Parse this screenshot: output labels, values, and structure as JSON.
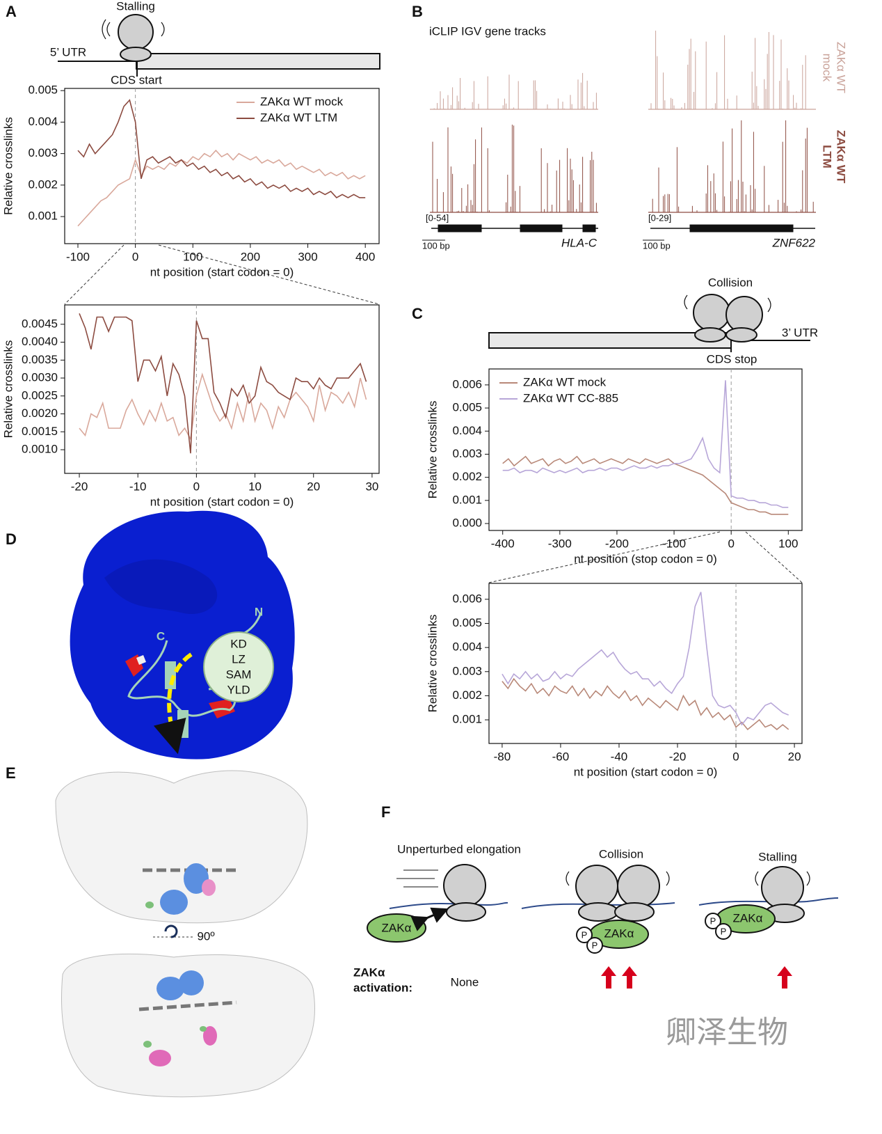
{
  "chart_data": [
    {
      "type": "line",
      "xlabel": "nt position (start codon = 0)",
      "ylabel": "Relative crosslinks",
      "legend": "upper right",
      "vline": 0,
      "x": [
        -100,
        -90,
        -80,
        -70,
        -60,
        -50,
        -40,
        -30,
        -20,
        -10,
        0,
        10,
        20,
        30,
        40,
        50,
        60,
        70,
        80,
        90,
        100,
        110,
        120,
        130,
        140,
        150,
        160,
        170,
        180,
        190,
        200,
        210,
        220,
        230,
        240,
        250,
        260,
        270,
        280,
        290,
        300,
        310,
        320,
        330,
        340,
        350,
        360,
        370,
        380,
        390,
        400
      ],
      "series": [
        {
          "name": "ZAKα WT mock",
          "color": "#d9a89b",
          "values": [
            0.0007,
            0.0009,
            0.0011,
            0.0013,
            0.0015,
            0.0016,
            0.0018,
            0.002,
            0.0021,
            0.0022,
            0.0028,
            0.0023,
            0.0026,
            0.0025,
            0.0026,
            0.0025,
            0.0027,
            0.0026,
            0.0028,
            0.0027,
            0.0029,
            0.0028,
            0.003,
            0.0029,
            0.0031,
            0.0029,
            0.003,
            0.0028,
            0.003,
            0.0029,
            0.0028,
            0.0029,
            0.0027,
            0.0028,
            0.0027,
            0.0028,
            0.0026,
            0.0027,
            0.0025,
            0.0026,
            0.0025,
            0.0024,
            0.0025,
            0.0023,
            0.0024,
            0.0023,
            0.0024,
            0.0022,
            0.0023,
            0.0022,
            0.0023
          ]
        },
        {
          "name": "ZAKα WT LTM",
          "color": "#8c4b40",
          "values": [
            0.0031,
            0.0029,
            0.0033,
            0.003,
            0.0032,
            0.0034,
            0.0036,
            0.004,
            0.0045,
            0.0047,
            0.004,
            0.0022,
            0.0028,
            0.0029,
            0.0027,
            0.0028,
            0.0029,
            0.0027,
            0.0028,
            0.0026,
            0.0027,
            0.0025,
            0.0026,
            0.0024,
            0.0025,
            0.0023,
            0.0024,
            0.0022,
            0.0023,
            0.0021,
            0.0022,
            0.002,
            0.0021,
            0.0019,
            0.002,
            0.0019,
            0.002,
            0.0018,
            0.0019,
            0.0018,
            0.0019,
            0.0017,
            0.0018,
            0.0017,
            0.0018,
            0.0016,
            0.0017,
            0.0016,
            0.0017,
            0.0016,
            0.0016
          ]
        }
      ],
      "xlim": [
        -123,
        424
      ],
      "ylim": [
        0.00014,
        0.00507
      ],
      "xticks": [
        -100,
        0,
        100,
        200,
        300,
        400
      ],
      "yticks": [
        0.001,
        0.002,
        0.003,
        0.004,
        0.005
      ]
    },
    {
      "type": "line",
      "xlabel": "nt position (start codon = 0)",
      "ylabel": "Relative crosslinks",
      "vline": 0,
      "x": [
        -20,
        -19,
        -18,
        -17,
        -16,
        -15,
        -14,
        -13,
        -12,
        -11,
        -10,
        -9,
        -8,
        -7,
        -6,
        -5,
        -4,
        -3,
        -2,
        -1,
        0,
        1,
        2,
        3,
        4,
        5,
        6,
        7,
        8,
        9,
        10,
        11,
        12,
        13,
        14,
        15,
        16,
        17,
        18,
        19,
        20,
        21,
        22,
        23,
        24,
        25,
        26,
        27,
        28,
        29
      ],
      "series": [
        {
          "color": "#d9a89b",
          "values": [
            0.0016,
            0.0014,
            0.002,
            0.0019,
            0.0023,
            0.0016,
            0.0016,
            0.0016,
            0.0021,
            0.0024,
            0.002,
            0.0017,
            0.0021,
            0.0018,
            0.0023,
            0.0018,
            0.0019,
            0.0014,
            0.0016,
            0.0013,
            0.0025,
            0.0031,
            0.0026,
            0.0021,
            0.0018,
            0.002,
            0.0016,
            0.0023,
            0.0018,
            0.0026,
            0.0018,
            0.0023,
            0.0021,
            0.0016,
            0.0022,
            0.0019,
            0.0024,
            0.0026,
            0.0024,
            0.0022,
            0.0018,
            0.0028,
            0.0021,
            0.0026,
            0.0025,
            0.0023,
            0.0026,
            0.0022,
            0.003,
            0.0024
          ]
        },
        {
          "color": "#8c4b40",
          "values": [
            0.0048,
            0.0044,
            0.0038,
            0.0047,
            0.0047,
            0.0043,
            0.0047,
            0.0047,
            0.0047,
            0.0046,
            0.0029,
            0.0035,
            0.0035,
            0.0032,
            0.0036,
            0.0025,
            0.0034,
            0.0031,
            0.0025,
            0.0009,
            0.0046,
            0.0041,
            0.0041,
            0.0026,
            0.0023,
            0.0019,
            0.0027,
            0.0025,
            0.0028,
            0.0023,
            0.0025,
            0.0033,
            0.0029,
            0.0028,
            0.0026,
            0.0025,
            0.0024,
            0.003,
            0.0029,
            0.0029,
            0.0027,
            0.003,
            0.0028,
            0.0027,
            0.003,
            0.003,
            0.003,
            0.0032,
            0.0034,
            0.0029
          ]
        }
      ],
      "xlim": [
        -22.5,
        31.2
      ],
      "ylim": [
        0.00034,
        0.00504
      ],
      "xticks": [
        -20,
        -10,
        0,
        10,
        20,
        30
      ],
      "yticks": [
        {
          "value": 0.001,
          "label": "0.0010"
        },
        0.0015,
        {
          "value": 0.002,
          "label": "0.0020"
        },
        0.0025,
        {
          "value": 0.003,
          "label": "0.0030"
        },
        0.0035,
        {
          "value": 0.004,
          "label": "0.0040"
        },
        0.0045
      ]
    },
    {
      "type": "line",
      "xlabel": "nt position (stop codon = 0)",
      "ylabel": "Relative crosslinks",
      "legend": "upper left",
      "vline": 0,
      "x": [
        -400,
        -390,
        -380,
        -370,
        -360,
        -350,
        -340,
        -330,
        -320,
        -310,
        -300,
        -290,
        -280,
        -270,
        -260,
        -250,
        -240,
        -230,
        -220,
        -210,
        -200,
        -190,
        -180,
        -170,
        -160,
        -150,
        -140,
        -130,
        -120,
        -110,
        -100,
        -90,
        -80,
        -70,
        -60,
        -50,
        -40,
        -30,
        -20,
        -10,
        0,
        10,
        20,
        30,
        40,
        50,
        60,
        70,
        80,
        90,
        100
      ],
      "series": [
        {
          "name": "ZAKα WT mock",
          "color": "#b88878",
          "values": [
            0.0026,
            0.0028,
            0.0025,
            0.0027,
            0.0029,
            0.0026,
            0.0027,
            0.0028,
            0.0025,
            0.0027,
            0.0028,
            0.0026,
            0.0027,
            0.0029,
            0.0026,
            0.0027,
            0.0028,
            0.0026,
            0.0027,
            0.0028,
            0.0027,
            0.0026,
            0.0028,
            0.0027,
            0.0026,
            0.0028,
            0.0027,
            0.0026,
            0.0027,
            0.0028,
            0.0026,
            0.0025,
            0.0024,
            0.0023,
            0.0022,
            0.0021,
            0.0019,
            0.0017,
            0.0015,
            0.0013,
            0.0009,
            0.0008,
            0.0007,
            0.0006,
            0.0006,
            0.0005,
            0.0005,
            0.0004,
            0.0004,
            0.0004,
            0.0004
          ]
        },
        {
          "name": "ZAKα WT CC-885",
          "color": "#b7a6d8",
          "values": [
            0.0023,
            0.0023,
            0.0024,
            0.0022,
            0.0023,
            0.0023,
            0.0022,
            0.0024,
            0.0023,
            0.0022,
            0.0023,
            0.0022,
            0.0023,
            0.0024,
            0.0022,
            0.0023,
            0.0023,
            0.0024,
            0.0023,
            0.0024,
            0.0024,
            0.0023,
            0.0024,
            0.0025,
            0.0024,
            0.0024,
            0.0025,
            0.0024,
            0.0025,
            0.0025,
            0.0026,
            0.0026,
            0.0027,
            0.0028,
            0.0032,
            0.0037,
            0.0028,
            0.0024,
            0.0022,
            0.0062,
            0.0012,
            0.0011,
            0.0011,
            0.001,
            0.001,
            0.0009,
            0.0009,
            0.0008,
            0.0008,
            0.0007,
            0.0007
          ]
        }
      ],
      "xlim": [
        -424,
        124
      ],
      "ylim": [
        -0.0003,
        0.00669
      ],
      "xticks": [
        -400,
        -300,
        -200,
        -100,
        0,
        100
      ],
      "yticks": [
        {
          "value": 0,
          "label": "0.000"
        },
        0.001,
        0.002,
        0.003,
        0.004,
        0.005,
        0.006
      ]
    },
    {
      "type": "line",
      "xlabel": "nt position (start codon = 0)",
      "ylabel": "Relative crosslinks",
      "vline": 0,
      "x": [
        -80,
        -78,
        -76,
        -74,
        -72,
        -70,
        -68,
        -66,
        -64,
        -62,
        -60,
        -58,
        -56,
        -54,
        -52,
        -50,
        -48,
        -46,
        -44,
        -42,
        -40,
        -38,
        -36,
        -34,
        -32,
        -30,
        -28,
        -26,
        -24,
        -22,
        -20,
        -18,
        -16,
        -14,
        -12,
        -10,
        -8,
        -6,
        -4,
        -2,
        0,
        2,
        4,
        6,
        8,
        10,
        12,
        14,
        16,
        18
      ],
      "series": [
        {
          "color": "#b88878",
          "values": [
            0.0026,
            0.0023,
            0.0027,
            0.0024,
            0.0022,
            0.0025,
            0.0021,
            0.0023,
            0.002,
            0.0024,
            0.0022,
            0.0021,
            0.0024,
            0.002,
            0.0023,
            0.0019,
            0.0022,
            0.002,
            0.0024,
            0.0021,
            0.0019,
            0.0022,
            0.0018,
            0.002,
            0.0016,
            0.0019,
            0.0017,
            0.0015,
            0.0018,
            0.0016,
            0.0014,
            0.002,
            0.0016,
            0.0018,
            0.0012,
            0.0015,
            0.0011,
            0.0013,
            0.001,
            0.0012,
            0.0007,
            0.0009,
            0.0006,
            0.0008,
            0.001,
            0.0007,
            0.0008,
            0.0006,
            0.0008,
            0.0006
          ]
        },
        {
          "color": "#b7a6d8",
          "values": [
            0.0029,
            0.0025,
            0.0029,
            0.0027,
            0.003,
            0.0027,
            0.0029,
            0.0026,
            0.0027,
            0.003,
            0.0027,
            0.0029,
            0.0028,
            0.0031,
            0.0033,
            0.0035,
            0.0037,
            0.0039,
            0.0036,
            0.0038,
            0.0034,
            0.0031,
            0.0029,
            0.003,
            0.0027,
            0.0027,
            0.0024,
            0.0026,
            0.0023,
            0.0021,
            0.0025,
            0.0028,
            0.004,
            0.0057,
            0.0063,
            0.004,
            0.002,
            0.0016,
            0.0015,
            0.0016,
            0.0013,
            0.0008,
            0.0011,
            0.001,
            0.0013,
            0.0016,
            0.0017,
            0.0015,
            0.0013,
            0.0012
          ]
        }
      ],
      "xlim": [
        -84.5,
        22.6
      ],
      "ylim": [
        2e-05,
        0.00666
      ],
      "xticks": [
        -80,
        -60,
        -40,
        -20,
        0,
        20
      ],
      "yticks": [
        0.001,
        0.002,
        0.003,
        0.004,
        0.005,
        0.006
      ]
    }
  ],
  "panels": {
    "labels": [
      "A",
      "B",
      "C",
      "D",
      "E",
      "F"
    ],
    "a": {
      "stalling": "Stalling",
      "utr5": "5’ UTR",
      "cds_start": "CDS start"
    },
    "b": {
      "title": "iCLIP IGV gene tracks",
      "track_mock": [
        "ZAKα WT",
        "mock"
      ],
      "track_ltm": [
        "ZAKα WT",
        "LTM"
      ],
      "genes": [
        {
          "range": "[0-54]",
          "scale": "100 bp",
          "name": "HLA-C"
        },
        {
          "range": "[0-29]",
          "scale": "100 bp",
          "name": "ZNF622"
        }
      ]
    },
    "c": {
      "collision": "Collision",
      "utr3": "3’ UTR",
      "cds_stop": "CDS stop"
    },
    "d": {
      "n": "N",
      "c": "C",
      "domains": [
        "KD",
        "LZ",
        "SAM",
        "YLD"
      ]
    },
    "e": {
      "rotation": "90º"
    },
    "f": {
      "scenarios": [
        "Unperturbed elongation",
        "Collision",
        "Stalling"
      ],
      "protein": "ZAKα",
      "phospho": "P",
      "activation_label": [
        "ZAKα",
        "activation:"
      ],
      "none": "None"
    },
    "watermark": "卿泽生物"
  }
}
